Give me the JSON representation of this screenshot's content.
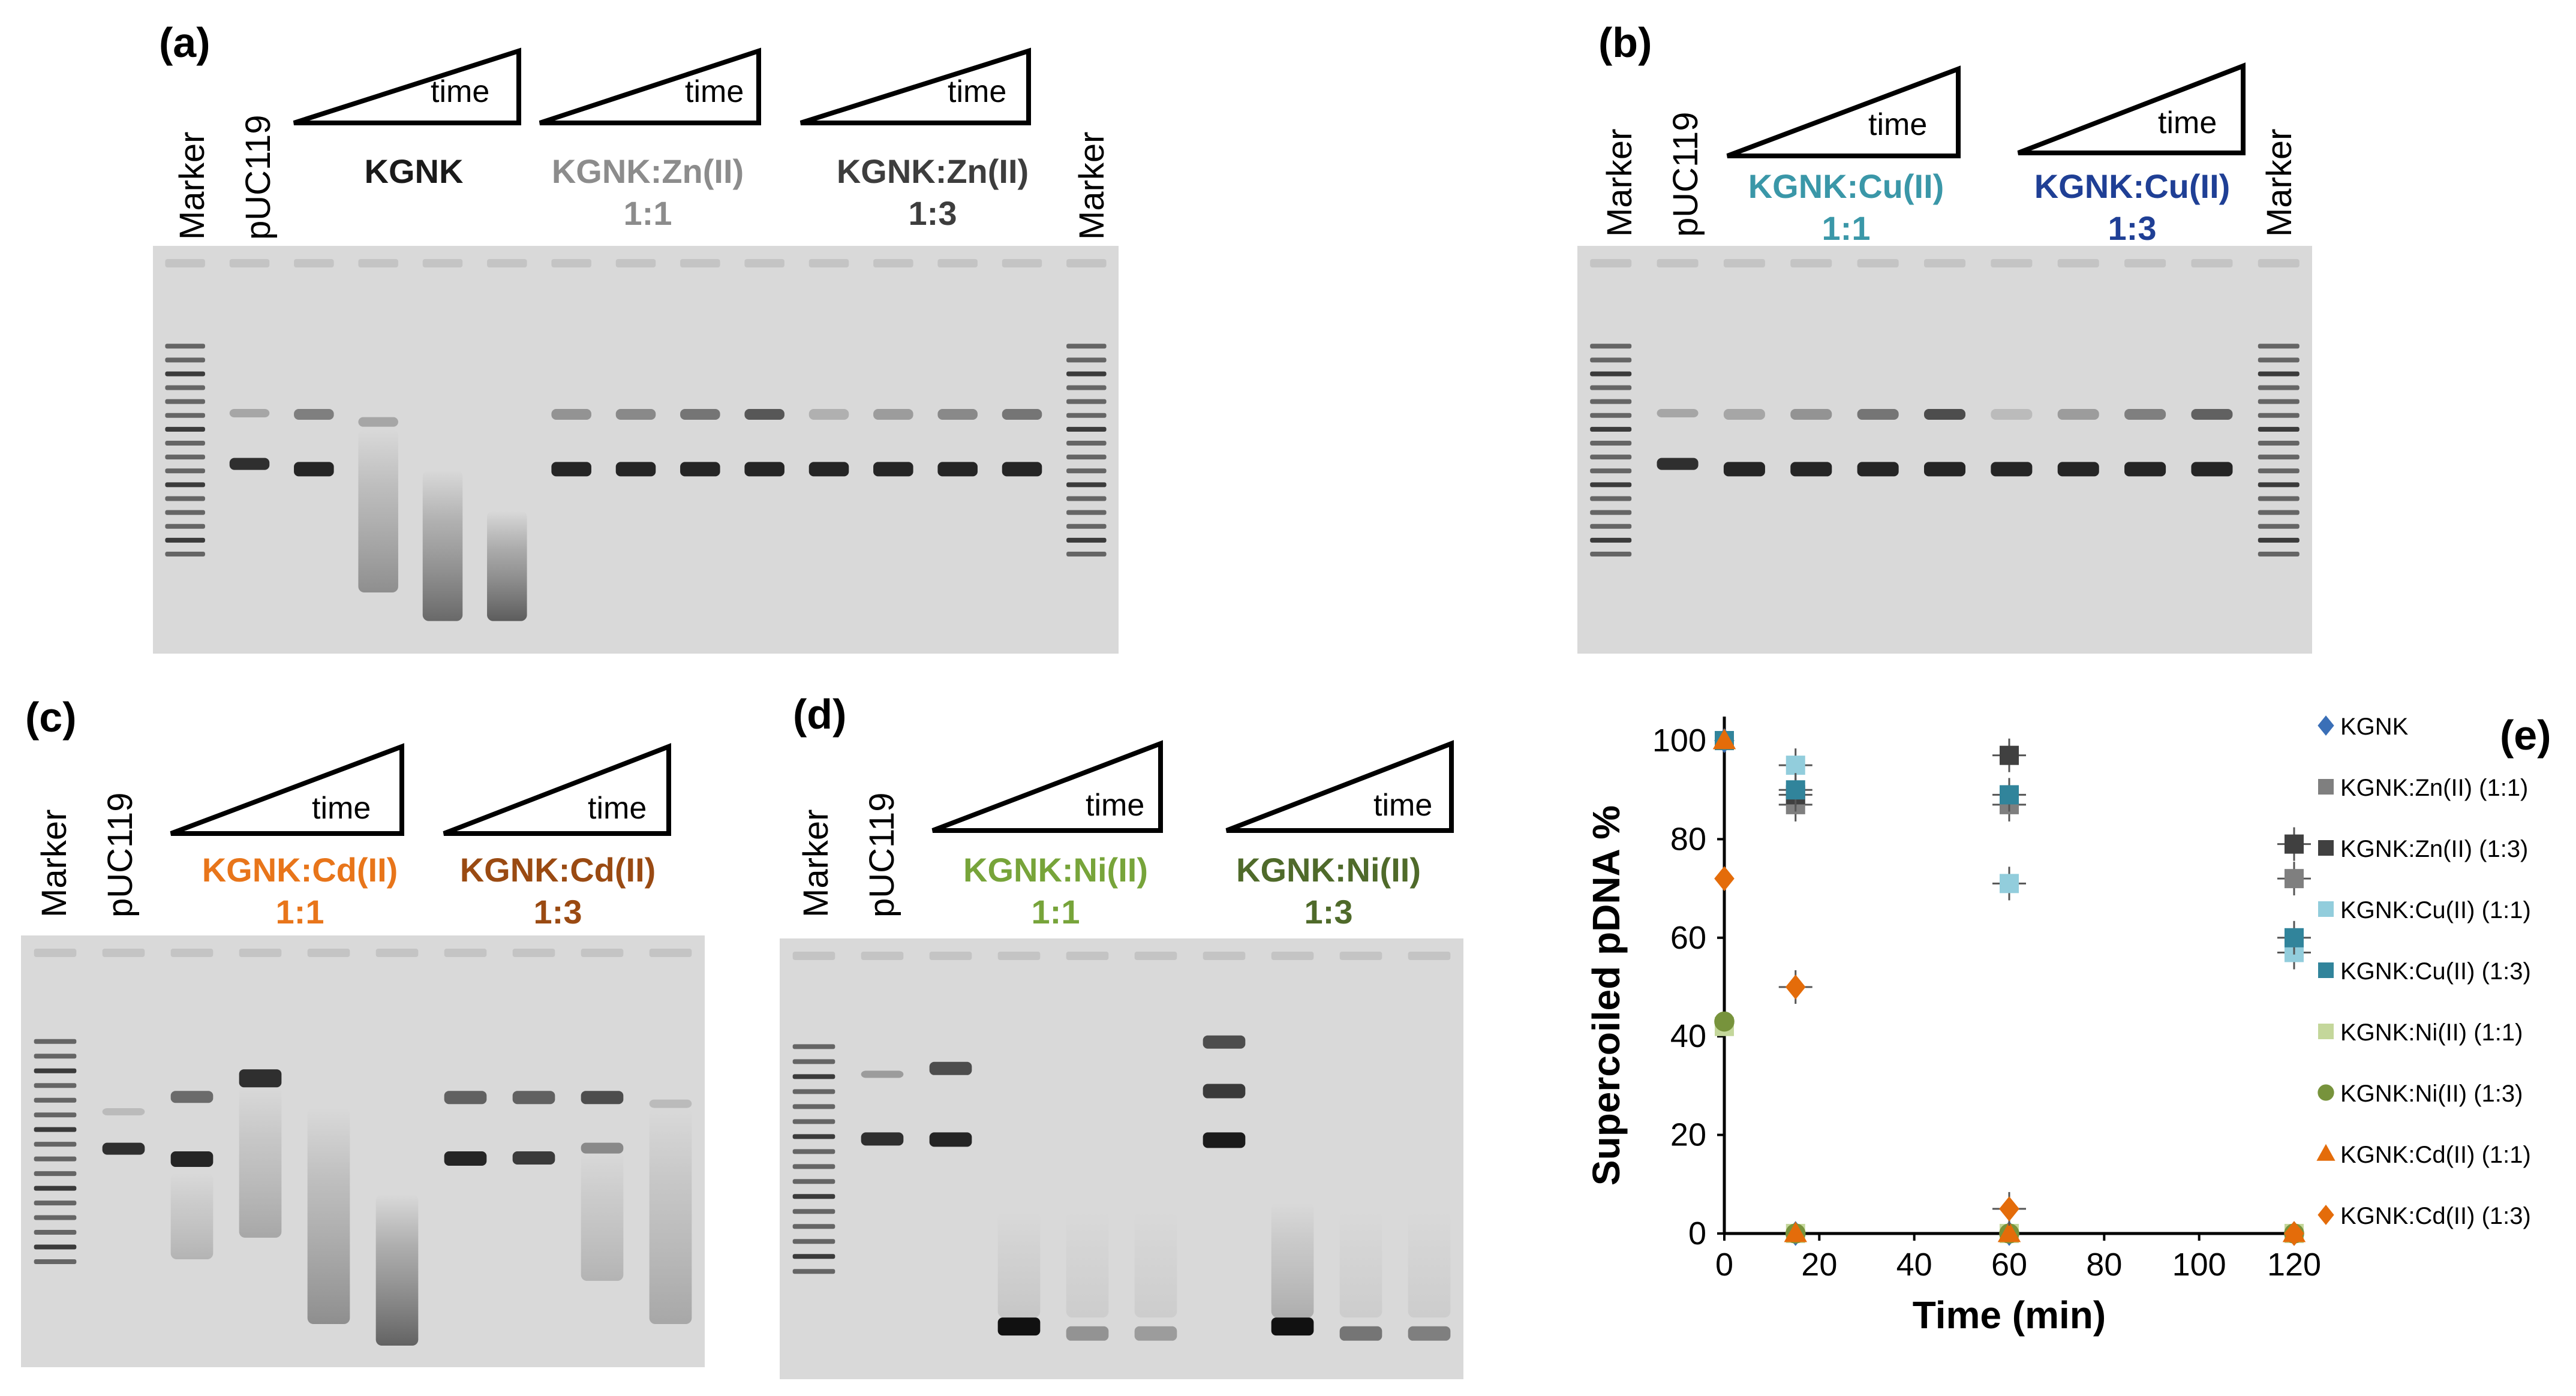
{
  "panels": {
    "a": {
      "label": "(a)",
      "lanes": {
        "marker_left": "Marker",
        "control": "pUC119",
        "marker_right": "Marker"
      },
      "groups": [
        {
          "time_label": "time",
          "name": "KGNK",
          "ratio": "",
          "color": "#1a1a1a"
        },
        {
          "time_label": "time",
          "name": "KGNK:Zn(II)",
          "ratio": "1:1",
          "color": "#8c8c8c"
        },
        {
          "time_label": "time",
          "name": "KGNK:Zn(II)",
          "ratio": "1:3",
          "color": "#3d3d3d"
        }
      ]
    },
    "b": {
      "label": "(b)",
      "lanes": {
        "marker_left": "Marker",
        "control": "pUC119",
        "marker_right": "Marker"
      },
      "groups": [
        {
          "time_label": "time",
          "name": "KGNK:Cu(II)",
          "ratio": "1:1",
          "color": "#3a97a8"
        },
        {
          "time_label": "time",
          "name": "KGNK:Cu(II)",
          "ratio": "1:3",
          "color": "#1f3f95"
        }
      ]
    },
    "c": {
      "label": "(c)",
      "lanes": {
        "marker_left": "Marker",
        "control": "pUC119"
      },
      "groups": [
        {
          "time_label": "time",
          "name": "KGNK:Cd(II)",
          "ratio": "1:1",
          "color": "#e8751a"
        },
        {
          "time_label": "time",
          "name": "KGNK:Cd(II)",
          "ratio": "1:3",
          "color": "#9a4a12"
        }
      ]
    },
    "d": {
      "label": "(d)",
      "lanes": {
        "marker_left": "Marker",
        "control": "pUC119"
      },
      "groups": [
        {
          "time_label": "time",
          "name": "KGNK:Ni(II)",
          "ratio": "1:1",
          "color": "#77a43a"
        },
        {
          "time_label": "time",
          "name": "KGNK:Ni(II)",
          "ratio": "1:3",
          "color": "#4f6a2a"
        }
      ]
    },
    "e": {
      "label": "(e)"
    }
  },
  "chart_data": {
    "type": "scatter",
    "xlabel": "Time (min)",
    "ylabel": "Supercoiled pDNA  %",
    "xlim": [
      0,
      120
    ],
    "ylim": [
      0,
      100
    ],
    "xticks": [
      "0",
      "20",
      "40",
      "60",
      "80",
      "100",
      "120"
    ],
    "yticks": [
      "0",
      "20",
      "40",
      "60",
      "80",
      "100"
    ],
    "grid": false,
    "legend_position": "right",
    "series": [
      {
        "name": "KGNK",
        "marker": "diamond",
        "color": "#3a6fb7",
        "points": [
          {
            "x": 0,
            "y": 100
          },
          {
            "x": 15,
            "y": 0
          },
          {
            "x": 60,
            "y": 0
          },
          {
            "x": 120,
            "y": 0
          }
        ]
      },
      {
        "name": "KGNK:Zn(II) (1:1)",
        "marker": "square",
        "color": "#7f7f7f",
        "points": [
          {
            "x": 0,
            "y": 100
          },
          {
            "x": 15,
            "y": 87
          },
          {
            "x": 60,
            "y": 87
          },
          {
            "x": 120,
            "y": 72
          }
        ]
      },
      {
        "name": "KGNK:Zn(II) (1:3)",
        "marker": "square",
        "color": "#404040",
        "points": [
          {
            "x": 0,
            "y": 100
          },
          {
            "x": 15,
            "y": 89
          },
          {
            "x": 60,
            "y": 97
          },
          {
            "x": 120,
            "y": 79
          }
        ]
      },
      {
        "name": "KGNK:Cu(II) (1:1)",
        "marker": "square",
        "color": "#92cddc",
        "points": [
          {
            "x": 0,
            "y": 100
          },
          {
            "x": 15,
            "y": 95
          },
          {
            "x": 60,
            "y": 71
          },
          {
            "x": 120,
            "y": 57
          }
        ]
      },
      {
        "name": "KGNK:Cu(II) (1:3)",
        "marker": "square",
        "color": "#31849b",
        "points": [
          {
            "x": 0,
            "y": 100
          },
          {
            "x": 15,
            "y": 90
          },
          {
            "x": 60,
            "y": 89
          },
          {
            "x": 120,
            "y": 60
          }
        ]
      },
      {
        "name": "KGNK:Ni(II) (1:1)",
        "marker": "square",
        "color": "#c4d79b",
        "points": [
          {
            "x": 0,
            "y": 42
          },
          {
            "x": 15,
            "y": 0
          },
          {
            "x": 60,
            "y": 0
          },
          {
            "x": 120,
            "y": 0
          }
        ]
      },
      {
        "name": "KGNK:Ni(II) (1:3)",
        "marker": "circle",
        "color": "#77933c",
        "points": [
          {
            "x": 0,
            "y": 43
          },
          {
            "x": 15,
            "y": 0
          },
          {
            "x": 60,
            "y": 0
          },
          {
            "x": 120,
            "y": 0
          }
        ]
      },
      {
        "name": "KGNK:Cd(II) (1:1)",
        "marker": "triangle",
        "color": "#e46c0a",
        "points": [
          {
            "x": 0,
            "y": 100
          },
          {
            "x": 15,
            "y": 0
          },
          {
            "x": 60,
            "y": 0
          },
          {
            "x": 120,
            "y": 0
          }
        ]
      },
      {
        "name": "KGNK:Cd(II) (1:3)",
        "marker": "diamond",
        "color": "#e46c0a",
        "points": [
          {
            "x": 0,
            "y": 72
          },
          {
            "x": 15,
            "y": 50
          },
          {
            "x": 60,
            "y": 5
          },
          {
            "x": 120,
            "y": 0
          }
        ]
      }
    ]
  }
}
